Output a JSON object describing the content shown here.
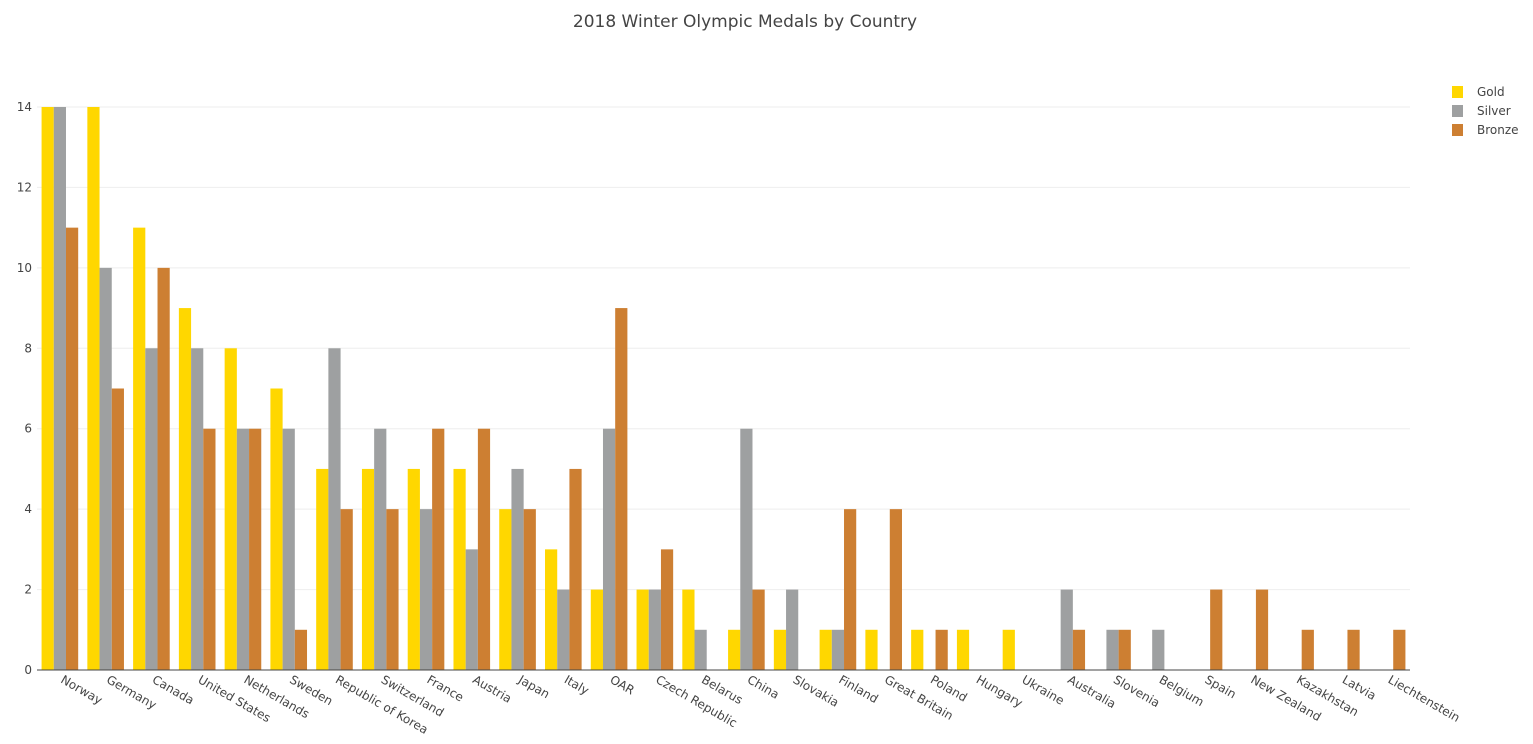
{
  "chart_data": {
    "type": "bar",
    "title": "2018 Winter Olympic Medals by Country",
    "xlabel": "",
    "ylabel": "",
    "ylim": [
      0,
      14
    ],
    "yticks": [
      0,
      2,
      4,
      6,
      8,
      10,
      12,
      14
    ],
    "grid": true,
    "legend_position": "top-right",
    "categories": [
      "Norway",
      "Germany",
      "Canada",
      "United States",
      "Netherlands",
      "Sweden",
      "Republic of Korea",
      "Switzerland",
      "France",
      "Austria",
      "Japan",
      "Italy",
      "OAR",
      "Czech Republic",
      "Belarus",
      "China",
      "Slovakia",
      "Finland",
      "Great Britain",
      "Poland",
      "Hungary",
      "Ukraine",
      "Australia",
      "Slovenia",
      "Belgium",
      "Spain",
      "New Zealand",
      "Kazakhstan",
      "Latvia",
      "Liechtenstein"
    ],
    "series": [
      {
        "name": "Gold",
        "color": "#FFD700",
        "values": [
          14,
          14,
          11,
          9,
          8,
          7,
          5,
          5,
          5,
          5,
          4,
          3,
          2,
          2,
          2,
          1,
          1,
          1,
          1,
          1,
          1,
          1,
          0,
          0,
          0,
          0,
          0,
          0,
          0,
          0
        ]
      },
      {
        "name": "Silver",
        "color": "#9EA0A1",
        "values": [
          14,
          10,
          8,
          8,
          6,
          6,
          8,
          6,
          4,
          3,
          5,
          2,
          6,
          2,
          1,
          6,
          2,
          1,
          0,
          0,
          0,
          0,
          2,
          1,
          1,
          0,
          0,
          0,
          0,
          0
        ]
      },
      {
        "name": "Bronze",
        "color": "#CD7F32",
        "values": [
          11,
          7,
          10,
          6,
          6,
          1,
          4,
          4,
          6,
          6,
          4,
          5,
          9,
          3,
          0,
          2,
          0,
          4,
          4,
          1,
          0,
          0,
          1,
          1,
          0,
          2,
          2,
          1,
          1,
          1
        ]
      }
    ]
  }
}
